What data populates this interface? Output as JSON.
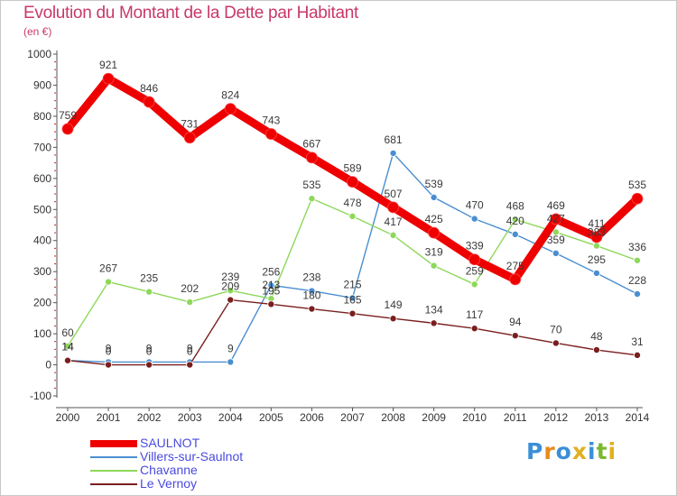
{
  "chart_data": {
    "type": "line",
    "title": "Evolution du Montant de la Dette par Habitant",
    "subtitle": "(en €)",
    "x": [
      "2000",
      "2001",
      "2002",
      "2003",
      "2004",
      "2005",
      "2006",
      "2007",
      "2008",
      "2009",
      "2010",
      "2011",
      "2012",
      "2013",
      "2014"
    ],
    "yticks": [
      -100,
      0,
      100,
      200,
      300,
      400,
      500,
      600,
      700,
      800,
      900,
      1000
    ],
    "ylim": [
      -100,
      1000
    ],
    "grid": false,
    "legend_position": "bottom-left",
    "series": [
      {
        "name": "SAULNOT",
        "color": "#ee0000",
        "emphasis": true,
        "values": [
          759,
          921,
          846,
          731,
          824,
          743,
          667,
          589,
          507,
          425,
          339,
          275,
          469,
          411,
          535
        ],
        "labels": [
          "759",
          "921",
          "846",
          "731",
          "824",
          "743",
          "667",
          "589",
          "507",
          "425",
          "339",
          "275",
          "469",
          "411",
          "535"
        ]
      },
      {
        "name": "Villers-sur-Saulnot",
        "color": "#4a8ed0",
        "emphasis": false,
        "values": [
          14,
          9,
          9,
          9,
          9,
          256,
          238,
          215,
          681,
          539,
          470,
          420,
          359,
          295,
          228
        ],
        "labels": [
          "14",
          "9",
          "9",
          "9",
          "9",
          "256",
          "238",
          "215",
          "681",
          "539",
          "470",
          "420",
          "359",
          "295",
          "228"
        ]
      },
      {
        "name": "Chavanne",
        "color": "#8ed85a",
        "emphasis": false,
        "values": [
          60,
          267,
          235,
          202,
          239,
          213,
          535,
          478,
          417,
          319,
          259,
          468,
          427,
          383,
          336
        ],
        "labels": [
          "60",
          "267",
          "235",
          "202",
          "239",
          "213",
          "535",
          "478",
          "417",
          "319",
          "259",
          "468",
          "427",
          "383",
          "336"
        ]
      },
      {
        "name": "Le Vernoy",
        "color": "#7a1e1e",
        "emphasis": false,
        "values": [
          14,
          0,
          0,
          0,
          209,
          195,
          180,
          165,
          149,
          134,
          117,
          94,
          70,
          48,
          31
        ],
        "labels": [
          "14",
          "0",
          "0",
          "0",
          "209",
          "195",
          "180",
          "165",
          "149",
          "134",
          "117",
          "94",
          "70",
          "48",
          "31"
        ]
      }
    ]
  },
  "brand": {
    "text": "Proxiti",
    "colors": [
      "#3a8fd8",
      "#e88a1c",
      "#3a8fd8",
      "#e0b020",
      "#3a8fd8",
      "#7ab830",
      "#e0b020"
    ]
  }
}
